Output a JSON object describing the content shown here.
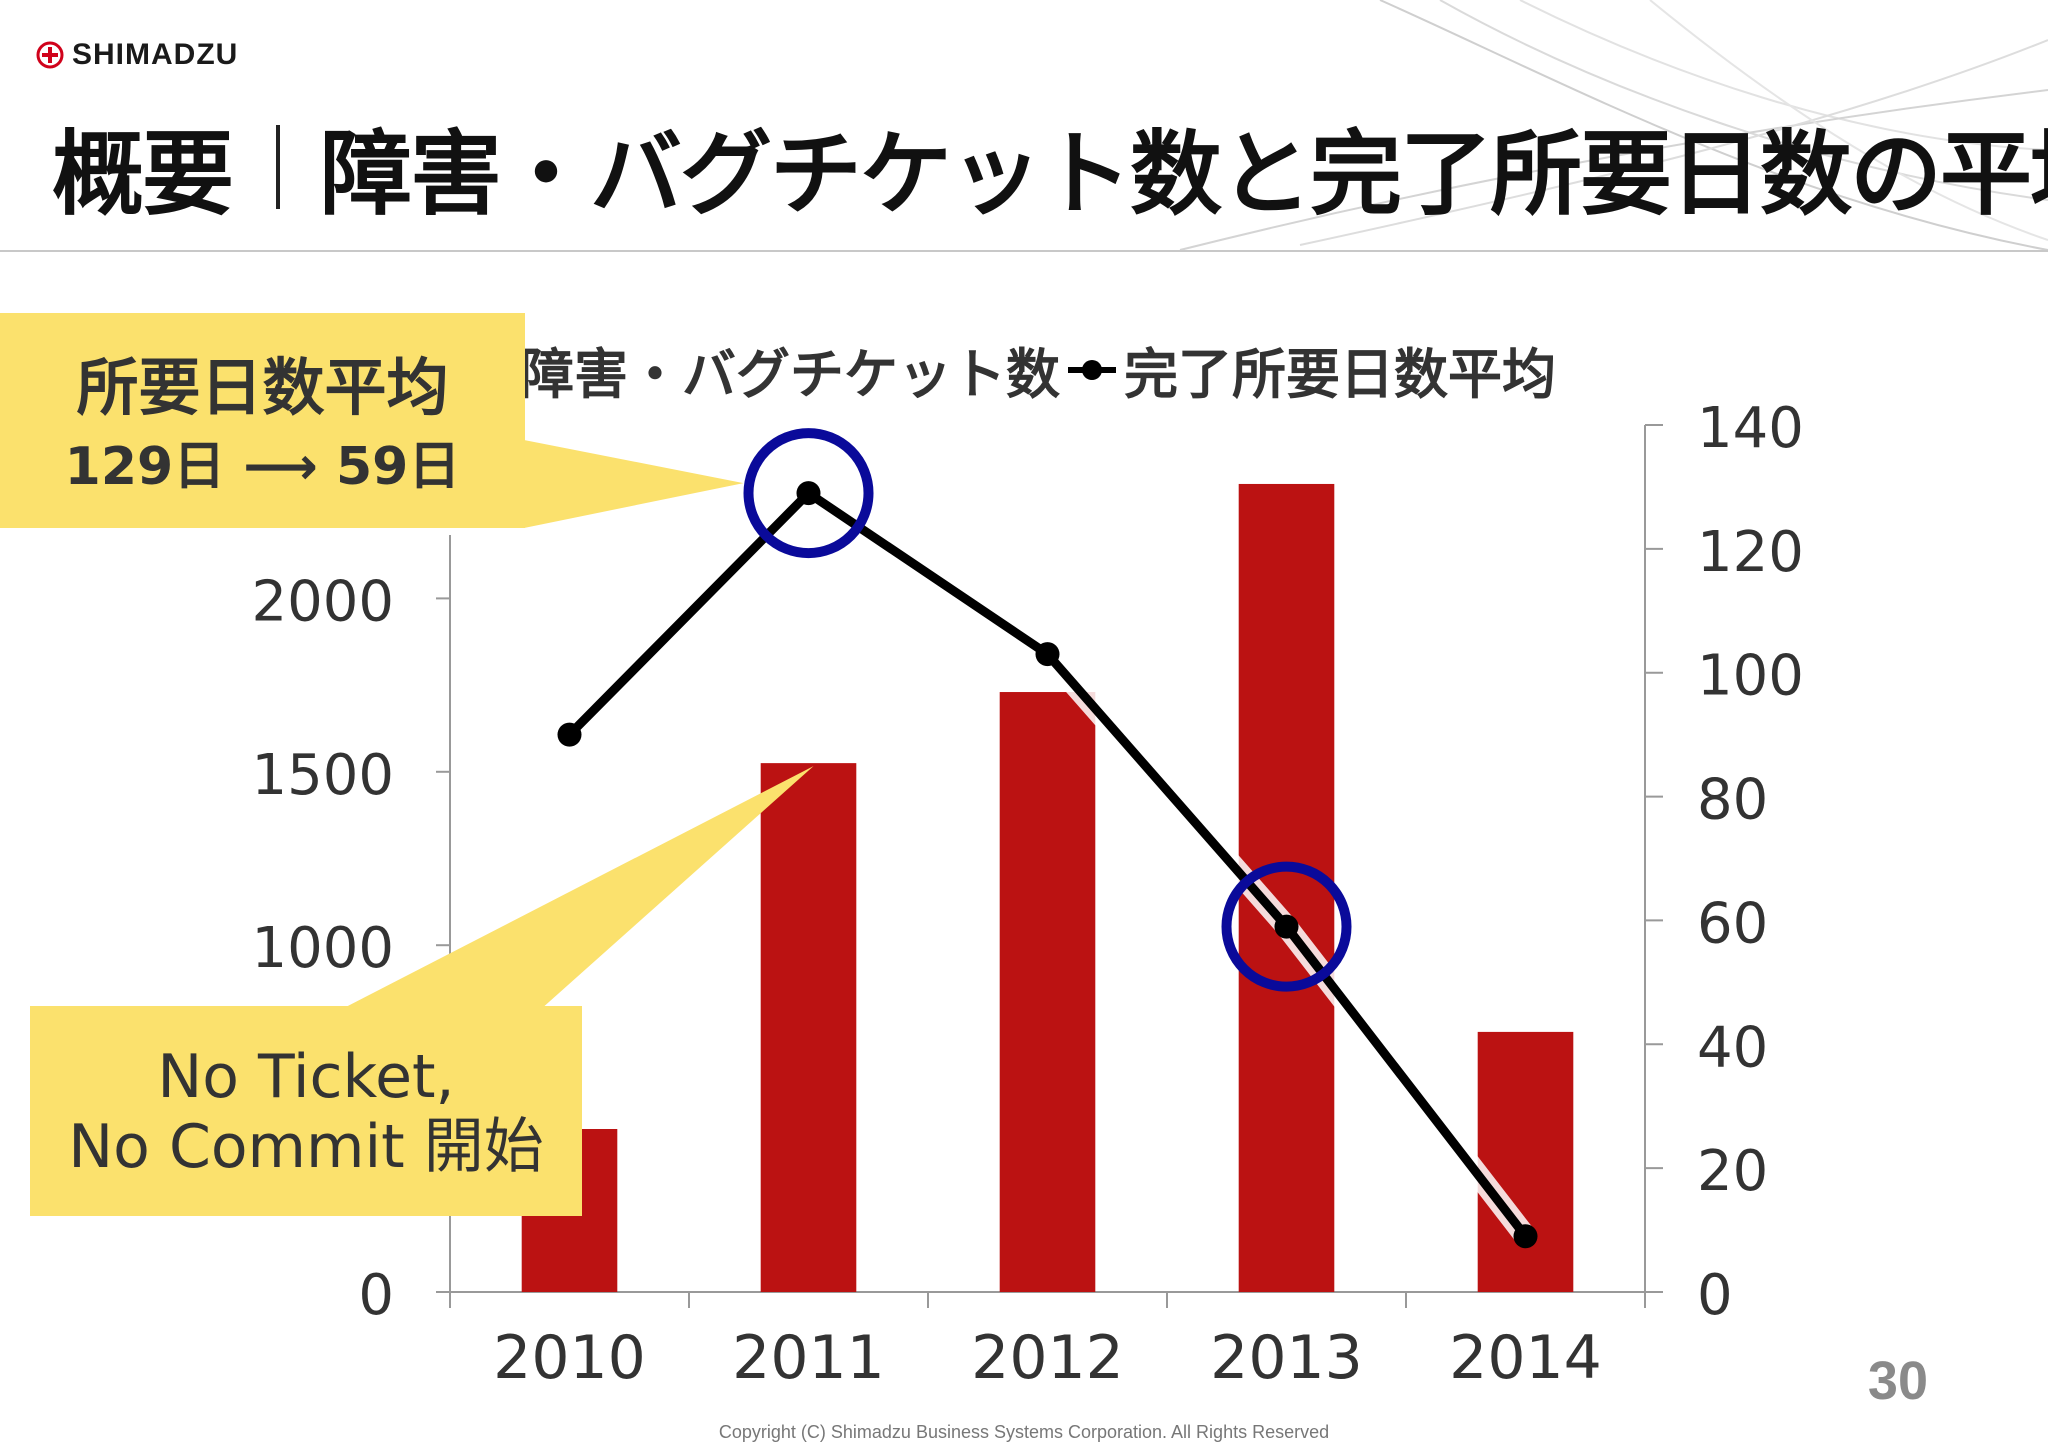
{
  "logo": {
    "text": "SHIMADZU",
    "icon": "shimadzu-logo-icon"
  },
  "title": {
    "main": "概要",
    "sub": "障害・バグチケット数と完了所要日数の平均"
  },
  "legend": {
    "bar_label": "障害・バグチケット数",
    "line_label": "完了所要日数平均"
  },
  "callouts": {
    "top_line1": "所要日数平均",
    "top_line2": "129日 ⟶ 59日",
    "bottom_line1": "No Ticket,",
    "bottom_line2": "No Commit 開始"
  },
  "page_number": "30",
  "copyright": "Copyright (C) Shimadzu Business Systems Corporation. All Rights Reserved",
  "colors": {
    "bar": "#bb1212",
    "line": "#000000",
    "highlight": "#0a0a9a",
    "callout": "#fbe16d"
  },
  "chart_data": {
    "type": "bar+line",
    "categories": [
      "2010",
      "2011",
      "2012",
      "2013",
      "2014"
    ],
    "series": [
      {
        "name": "障害・バグチケット数",
        "type": "bar",
        "axis": "left",
        "values": [
          470,
          1525,
          1730,
          2330,
          750
        ]
      },
      {
        "name": "完了所要日数平均",
        "type": "line",
        "axis": "right",
        "values": [
          90,
          129,
          103,
          59,
          9
        ]
      }
    ],
    "y_left": {
      "min": 0,
      "max": 2500,
      "ticks": [
        "0",
        "1000",
        "1500",
        "2000"
      ],
      "tick_values": [
        0,
        1000,
        1500,
        2000
      ]
    },
    "y_right": {
      "min": 0,
      "max": 140,
      "ticks": [
        "0",
        "20",
        "40",
        "60",
        "80",
        "100",
        "120",
        "140"
      ],
      "tick_values": [
        0,
        20,
        40,
        60,
        80,
        100,
        120,
        140
      ]
    },
    "highlights": [
      "2011",
      "2013"
    ]
  }
}
